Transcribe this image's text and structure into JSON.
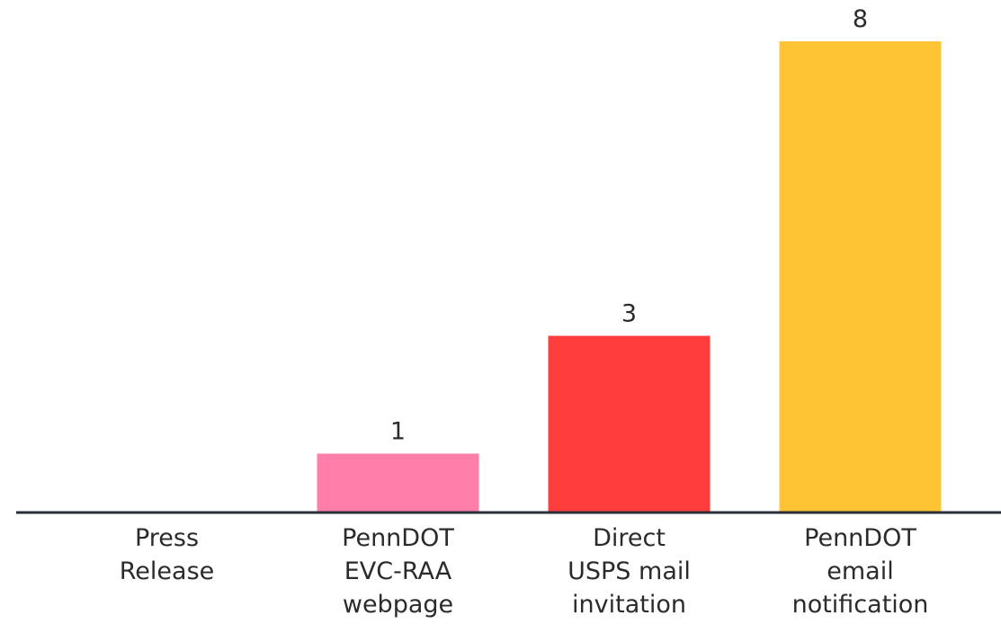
{
  "chart_data": {
    "type": "bar",
    "categories": [
      [
        "Press",
        "Release"
      ],
      [
        "PennDOT",
        "EVC-RAA",
        "webpage"
      ],
      [
        "Direct",
        "USPS mail",
        "invitation"
      ],
      [
        "PennDOT",
        "email",
        "notification"
      ]
    ],
    "values": [
      0,
      1,
      3,
      8
    ],
    "value_labels": [
      null,
      "1",
      "3",
      "8"
    ],
    "colors": [
      "#ff7faa",
      "#ff7faa",
      "#ff3d3d",
      "#ffc433"
    ],
    "ylim": [
      0,
      8
    ]
  }
}
